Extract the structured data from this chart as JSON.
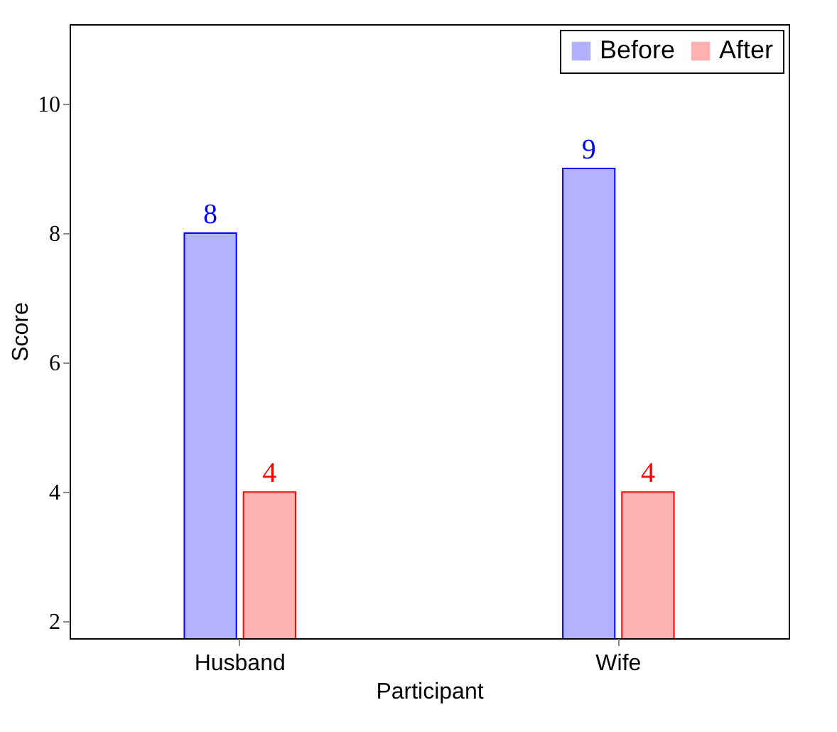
{
  "chart_data": {
    "type": "bar",
    "xlabel": "Participant",
    "ylabel": "Score",
    "categories": [
      "Husband",
      "Wife"
    ],
    "series": [
      {
        "name": "Before",
        "color": "#0000ff",
        "values": [
          8,
          9
        ]
      },
      {
        "name": "After",
        "color": "#ff0000",
        "values": [
          4,
          4
        ]
      }
    ],
    "ylim": [
      1.74,
      11.23
    ],
    "yticks": [
      2,
      4,
      6,
      8,
      10
    ],
    "grid": false,
    "legend": "top right",
    "data_labels": true
  }
}
